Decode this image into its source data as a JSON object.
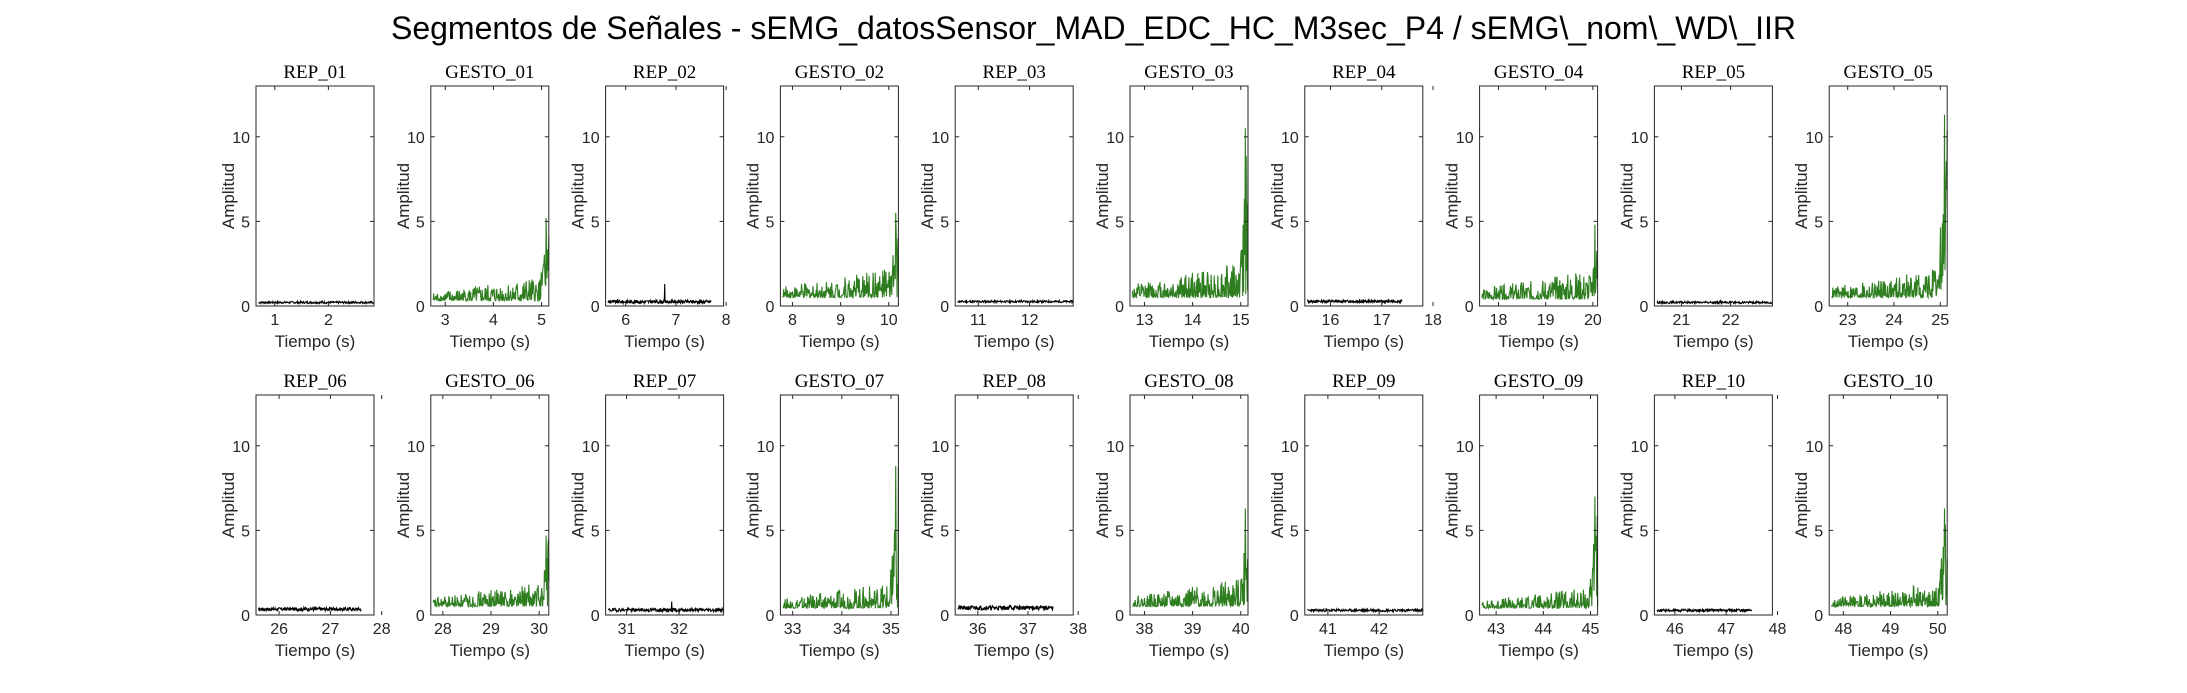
{
  "figure": {
    "title": "Segmentos de Señales - sEMG_datosSensor_MAD_EDC_HC_M3sec_P4 / sEMG\\_nom\\_WD\\_IIR"
  },
  "colors": {
    "rest": "#000000",
    "gesture": "#2e7d1f",
    "axis": "#262626"
  },
  "chart_data": [
    {
      "type": "line",
      "title": "REP_01",
      "kind": "rest",
      "xlabel": "Tiempo (s)",
      "ylabel": "Amplitud",
      "xlim": [
        0.65,
        2.85
      ],
      "xticks": [
        1,
        2
      ],
      "ylim": [
        0,
        13
      ],
      "yticks": [
        0,
        5,
        10
      ],
      "series": [
        {
          "x0": 0.7,
          "x1": 2.85,
          "base": 0.15,
          "noise": 0.12,
          "peak": 0.3,
          "ramp": 0
        }
      ]
    },
    {
      "type": "line",
      "title": "GESTO_01",
      "kind": "gesture",
      "xlabel": "Tiempo (s)",
      "ylabel": "Amplitud",
      "xlim": [
        2.7,
        5.15
      ],
      "xticks": [
        3,
        4,
        5
      ],
      "ylim": [
        0,
        13
      ],
      "yticks": [
        0,
        5,
        10
      ],
      "series": [
        {
          "x0": 2.75,
          "x1": 5.15,
          "base": 0.3,
          "noise": 1.5,
          "peak": 5.2,
          "ramp": 1
        }
      ]
    },
    {
      "type": "line",
      "title": "REP_02",
      "kind": "rest",
      "xlabel": "Tiempo (s)",
      "ylabel": "Amplitud",
      "xlim": [
        5.6,
        7.95
      ],
      "xticks": [
        6,
        7,
        8
      ],
      "ylim": [
        0,
        13
      ],
      "yticks": [
        0,
        5,
        10
      ],
      "series": [
        {
          "x0": 5.65,
          "x1": 7.7,
          "base": 0.15,
          "noise": 0.2,
          "peak": 1.3,
          "ramp": 0
        }
      ]
    },
    {
      "type": "line",
      "title": "GESTO_02",
      "kind": "gesture",
      "xlabel": "Tiempo (s)",
      "ylabel": "Amplitud",
      "xlim": [
        7.75,
        10.2
      ],
      "xticks": [
        8,
        9,
        10
      ],
      "ylim": [
        0,
        13
      ],
      "yticks": [
        0,
        5,
        10
      ],
      "series": [
        {
          "x0": 7.8,
          "x1": 10.2,
          "base": 0.5,
          "noise": 1.8,
          "peak": 5.5,
          "ramp": 1
        }
      ]
    },
    {
      "type": "line",
      "title": "REP_03",
      "kind": "rest",
      "xlabel": "Tiempo (s)",
      "ylabel": "Amplitud",
      "xlim": [
        10.55,
        12.85
      ],
      "xticks": [
        11,
        12
      ],
      "ylim": [
        0,
        13
      ],
      "yticks": [
        0,
        5,
        10
      ],
      "series": [
        {
          "x0": 10.6,
          "x1": 12.85,
          "base": 0.2,
          "noise": 0.12,
          "peak": 0.35,
          "ramp": 0
        }
      ]
    },
    {
      "type": "line",
      "title": "GESTO_03",
      "kind": "gesture",
      "xlabel": "Tiempo (s)",
      "ylabel": "Amplitud",
      "xlim": [
        12.7,
        15.15
      ],
      "xticks": [
        13,
        14,
        15
      ],
      "ylim": [
        0,
        13
      ],
      "yticks": [
        0,
        5,
        10
      ],
      "series": [
        {
          "x0": 12.75,
          "x1": 15.15,
          "base": 0.5,
          "noise": 2.2,
          "peak": 10.5,
          "ramp": 1
        }
      ]
    },
    {
      "type": "line",
      "title": "REP_04",
      "kind": "rest",
      "xlabel": "Tiempo (s)",
      "ylabel": "Amplitud",
      "xlim": [
        15.5,
        17.8
      ],
      "xticks": [
        16,
        17,
        18
      ],
      "ylim": [
        0,
        13
      ],
      "yticks": [
        0,
        5,
        10
      ],
      "series": [
        {
          "x0": 15.55,
          "x1": 17.4,
          "base": 0.2,
          "noise": 0.15,
          "peak": 0.4,
          "ramp": 0
        }
      ]
    },
    {
      "type": "line",
      "title": "GESTO_04",
      "kind": "gesture",
      "xlabel": "Tiempo (s)",
      "ylabel": "Amplitud",
      "xlim": [
        17.6,
        20.1
      ],
      "xticks": [
        18,
        19,
        20
      ],
      "ylim": [
        0,
        13
      ],
      "yticks": [
        0,
        5,
        10
      ],
      "series": [
        {
          "x0": 17.65,
          "x1": 20.1,
          "base": 0.4,
          "noise": 1.8,
          "peak": 4.8,
          "ramp": 1
        }
      ]
    },
    {
      "type": "line",
      "title": "REP_05",
      "kind": "rest",
      "xlabel": "Tiempo (s)",
      "ylabel": "Amplitud",
      "xlim": [
        20.45,
        22.85
      ],
      "xticks": [
        21,
        22
      ],
      "ylim": [
        0,
        13
      ],
      "yticks": [
        0,
        5,
        10
      ],
      "series": [
        {
          "x0": 20.5,
          "x1": 22.85,
          "base": 0.15,
          "noise": 0.12,
          "peak": 0.3,
          "ramp": 0
        }
      ]
    },
    {
      "type": "line",
      "title": "GESTO_05",
      "kind": "gesture",
      "xlabel": "Tiempo (s)",
      "ylabel": "Amplitud",
      "xlim": [
        22.6,
        25.15
      ],
      "xticks": [
        23,
        24,
        25
      ],
      "ylim": [
        0,
        13
      ],
      "yticks": [
        0,
        5,
        10
      ],
      "series": [
        {
          "x0": 22.65,
          "x1": 25.15,
          "base": 0.5,
          "noise": 1.8,
          "peak": 11.3,
          "ramp": 1
        }
      ]
    },
    {
      "type": "line",
      "title": "REP_06",
      "kind": "rest",
      "xlabel": "Tiempo (s)",
      "ylabel": "Amplitud",
      "xlim": [
        25.55,
        27.85
      ],
      "xticks": [
        26,
        27,
        28
      ],
      "ylim": [
        0,
        13
      ],
      "yticks": [
        0,
        5,
        10
      ],
      "series": [
        {
          "x0": 25.6,
          "x1": 27.6,
          "base": 0.25,
          "noise": 0.2,
          "peak": 0.5,
          "ramp": 0
        }
      ]
    },
    {
      "type": "line",
      "title": "GESTO_06",
      "kind": "gesture",
      "xlabel": "Tiempo (s)",
      "ylabel": "Amplitud",
      "xlim": [
        27.75,
        30.2
      ],
      "xticks": [
        28,
        29,
        30
      ],
      "ylim": [
        0,
        13
      ],
      "yticks": [
        0,
        5,
        10
      ],
      "series": [
        {
          "x0": 27.8,
          "x1": 30.2,
          "base": 0.5,
          "noise": 1.5,
          "peak": 4.7,
          "ramp": 1
        }
      ]
    },
    {
      "type": "line",
      "title": "REP_07",
      "kind": "rest",
      "xlabel": "Tiempo (s)",
      "ylabel": "Amplitud",
      "xlim": [
        30.6,
        32.85
      ],
      "xticks": [
        31,
        32
      ],
      "ylim": [
        0,
        13
      ],
      "yticks": [
        0,
        5,
        10
      ],
      "series": [
        {
          "x0": 30.65,
          "x1": 32.85,
          "base": 0.2,
          "noise": 0.2,
          "peak": 0.8,
          "ramp": 0
        }
      ]
    },
    {
      "type": "line",
      "title": "GESTO_07",
      "kind": "gesture",
      "xlabel": "Tiempo (s)",
      "ylabel": "Amplitud",
      "xlim": [
        32.75,
        35.15
      ],
      "xticks": [
        33,
        34,
        35
      ],
      "ylim": [
        0,
        13
      ],
      "yticks": [
        0,
        5,
        10
      ],
      "series": [
        {
          "x0": 32.8,
          "x1": 35.15,
          "base": 0.4,
          "noise": 1.6,
          "peak": 8.8,
          "ramp": 1
        }
      ]
    },
    {
      "type": "line",
      "title": "REP_08",
      "kind": "rest",
      "xlabel": "Tiempo (s)",
      "ylabel": "Amplitud",
      "xlim": [
        35.55,
        37.9
      ],
      "xticks": [
        36,
        37,
        38
      ],
      "ylim": [
        0,
        13
      ],
      "yticks": [
        0,
        5,
        10
      ],
      "series": [
        {
          "x0": 35.6,
          "x1": 37.5,
          "base": 0.3,
          "noise": 0.25,
          "peak": 0.6,
          "ramp": 0
        }
      ]
    },
    {
      "type": "line",
      "title": "GESTO_08",
      "kind": "gesture",
      "xlabel": "Tiempo (s)",
      "ylabel": "Amplitud",
      "xlim": [
        37.7,
        40.15
      ],
      "xticks": [
        38,
        39,
        40
      ],
      "ylim": [
        0,
        13
      ],
      "yticks": [
        0,
        5,
        10
      ],
      "series": [
        {
          "x0": 37.75,
          "x1": 40.15,
          "base": 0.5,
          "noise": 1.7,
          "peak": 6.3,
          "ramp": 1
        }
      ]
    },
    {
      "type": "line",
      "title": "REP_09",
      "kind": "rest",
      "xlabel": "Tiempo (s)",
      "ylabel": "Amplitud",
      "xlim": [
        40.55,
        42.85
      ],
      "xticks": [
        41,
        42
      ],
      "ylim": [
        0,
        13
      ],
      "yticks": [
        0,
        5,
        10
      ],
      "series": [
        {
          "x0": 40.6,
          "x1": 42.85,
          "base": 0.2,
          "noise": 0.15,
          "peak": 0.35,
          "ramp": 0
        }
      ]
    },
    {
      "type": "line",
      "title": "GESTO_09",
      "kind": "gesture",
      "xlabel": "Tiempo (s)",
      "ylabel": "Amplitud",
      "xlim": [
        42.65,
        45.15
      ],
      "xticks": [
        43,
        44,
        45
      ],
      "ylim": [
        0,
        13
      ],
      "yticks": [
        0,
        5,
        10
      ],
      "series": [
        {
          "x0": 42.7,
          "x1": 45.15,
          "base": 0.4,
          "noise": 1.3,
          "peak": 7.0,
          "ramp": 1
        }
      ]
    },
    {
      "type": "line",
      "title": "REP_10",
      "kind": "rest",
      "xlabel": "Tiempo (s)",
      "ylabel": "Amplitud",
      "xlim": [
        45.6,
        47.9
      ],
      "xticks": [
        46,
        47,
        48
      ],
      "ylim": [
        0,
        13
      ],
      "yticks": [
        0,
        5,
        10
      ],
      "series": [
        {
          "x0": 45.65,
          "x1": 47.5,
          "base": 0.2,
          "noise": 0.15,
          "peak": 0.35,
          "ramp": 0
        }
      ]
    },
    {
      "type": "line",
      "title": "GESTO_10",
      "kind": "gesture",
      "xlabel": "Tiempo (s)",
      "ylabel": "Amplitud",
      "xlim": [
        47.7,
        50.2
      ],
      "xticks": [
        48,
        49,
        50
      ],
      "ylim": [
        0,
        13
      ],
      "yticks": [
        0,
        5,
        10
      ],
      "series": [
        {
          "x0": 47.75,
          "x1": 50.2,
          "base": 0.5,
          "noise": 1.5,
          "peak": 6.3,
          "ramp": 1
        }
      ]
    }
  ]
}
